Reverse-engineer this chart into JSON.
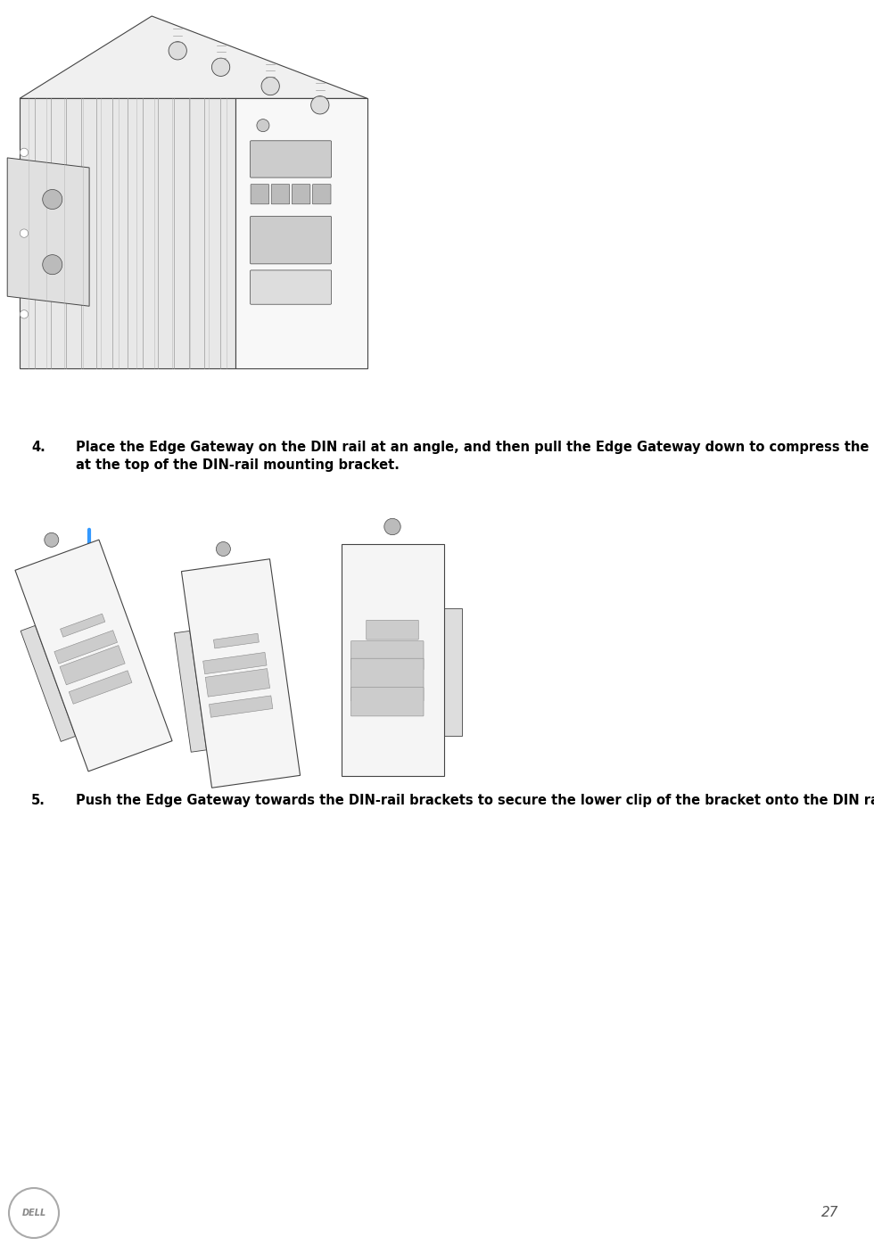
{
  "background_color": "#ffffff",
  "page_width": 9.8,
  "page_height": 13.97,
  "dpi": 100,
  "step4_text_num": "4.",
  "step4_text_body": "Place the Edge Gateway on the DIN rail at an angle, and then pull the Edge Gateway down to compress the springs\nat the top of the DIN-rail mounting bracket.",
  "step5_text_num": "5.",
  "step5_text_body": "Push the Edge Gateway towards the DIN-rail brackets to secure the lower clip of the bracket onto the DIN rail.",
  "page_number": "27",
  "text_color": "#000000",
  "text_fontsize": 10.5,
  "page_num_fontsize": 11,
  "blue_arrow_color": "#3399ff",
  "dell_logo_color": "#aaaaaa",
  "line_color": "#444444",
  "fin_color": "#999999",
  "device_face_color": "#f8f8f8",
  "device_edge_color": "#666666",
  "port_fill": "#cccccc",
  "bracket_fill": "#dddddd",
  "screw_fill": "#dddddd"
}
